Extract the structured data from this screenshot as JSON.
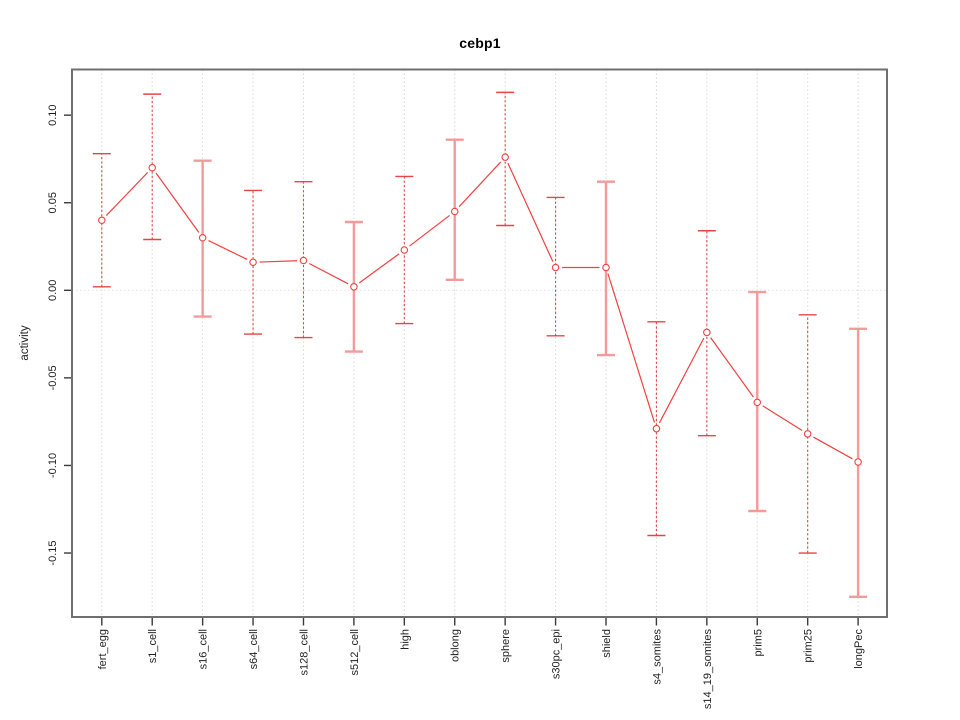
{
  "window": {
    "background": "#ffffff"
  },
  "chart_data": {
    "type": "line",
    "title": "cebp1",
    "xlabel": "",
    "ylabel": "activity",
    "categories": [
      "fert_egg",
      "s1_cell",
      "s16_cell",
      "s64_cell",
      "s128_cell",
      "s512_cell",
      "high",
      "oblong",
      "sphere",
      "s30pc_epi",
      "shield",
      "s4_somites",
      "s14_19_somites",
      "prim5",
      "prim25",
      "longPec"
    ],
    "series": [
      {
        "name": "activity",
        "values": [
          0.04,
          0.07,
          0.03,
          0.016,
          0.017,
          0.002,
          0.023,
          0.045,
          0.076,
          0.013,
          0.013,
          -0.079,
          -0.024,
          -0.064,
          -0.082,
          -0.098
        ],
        "ci_high": [
          0.078,
          0.112,
          0.074,
          0.057,
          0.062,
          0.039,
          0.065,
          0.086,
          0.113,
          0.053,
          0.062,
          -0.018,
          0.034,
          -0.001,
          -0.014,
          -0.022
        ],
        "ci_low": [
          0.002,
          0.029,
          -0.015,
          -0.025,
          -0.027,
          -0.035,
          -0.019,
          0.006,
          0.037,
          -0.026,
          -0.037,
          -0.14,
          -0.083,
          -0.126,
          -0.15,
          -0.175
        ]
      }
    ],
    "error_bar_styles": [
      "dashed",
      "dashed",
      "solid",
      "dashed",
      "dashed",
      "solid",
      "dashed",
      "solid",
      "dashed",
      "dashed",
      "solid",
      "dashed",
      "dashed",
      "solid",
      "dashed",
      "solid"
    ],
    "marker": "open-circle",
    "y_ticks": [
      0.1,
      0.05,
      0.0,
      -0.05,
      -0.1,
      -0.15
    ],
    "y_tick_labels": [
      "0.10",
      "0.05",
      "0.00",
      "-0.05",
      "-0.10",
      "-0.15"
    ],
    "ylim": [
      -0.186,
      0.126
    ],
    "grid": {
      "vertical_category_lines": true,
      "zero_line": true,
      "horizontal_lines": false
    },
    "legend": null,
    "colors": {
      "line": "#f04141",
      "marker_stroke": "#f04141",
      "marker_fill": "#ffffff",
      "error_bar_dashed": "#e84444",
      "error_bar_solid": "#f59a9a",
      "gridline": "#d9d9d9",
      "zero_line": "#e0e0e0",
      "box_border": "#6f6f6f",
      "tick": "#3a3a3a",
      "tick_label": "#1f1f1f"
    }
  }
}
